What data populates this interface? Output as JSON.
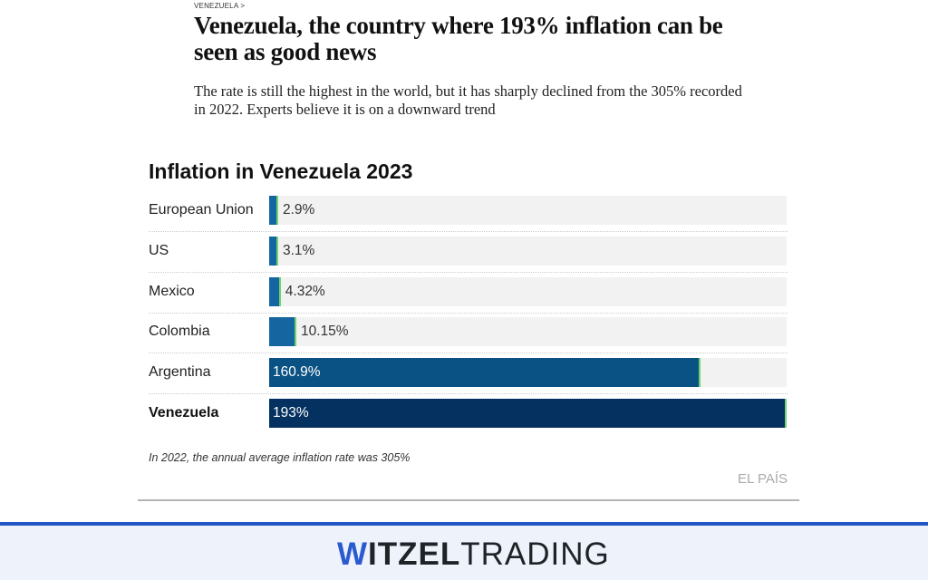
{
  "breadcrumb": "VENEZUELA >",
  "headline": "Venezuela, the country where 193% inflation can be seen as good news",
  "subheadline": "The rate is still the highest in the world, but it has sharply declined from the 305% recorded in 2022. Experts believe it is on a downward trend",
  "chart_data": {
    "type": "bar",
    "orientation": "horizontal",
    "title": "Inflation in Venezuela 2023",
    "categories": [
      "European Union",
      "US",
      "Mexico",
      "Colombia",
      "Argentina",
      "Venezuela"
    ],
    "values": [
      2.9,
      3.1,
      4.32,
      10.15,
      160.9,
      193
    ],
    "labels": [
      "2.9%",
      "3.1%",
      "4.32%",
      "10.15%",
      "160.9%",
      "193%"
    ],
    "xlim": [
      0,
      193
    ],
    "highlight": "Venezuela",
    "colors": [
      "#1565a0",
      "#1565a0",
      "#1565a0",
      "#1565a0",
      "#0a5283",
      "#04315f"
    ],
    "end_marker_color": "#6fd36f",
    "track_color": "#f2f2f2",
    "note": "In 2022, the annual average inflation rate was 305%",
    "source": "EL PAÍS"
  },
  "footer": {
    "logo_w": "W",
    "logo_bold": "ITZEL",
    "logo_rest": "TRADING",
    "accent": "#1f56c3"
  }
}
